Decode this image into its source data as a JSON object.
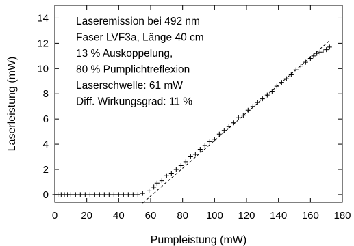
{
  "chart_data": {
    "type": "scatter",
    "xlabel": "Pumpleistung (mW)",
    "ylabel": "Laserleistung (mW)",
    "xlim": [
      0,
      180
    ],
    "ylim": [
      -0.6,
      15
    ],
    "x_ticks": [
      0,
      20,
      40,
      60,
      80,
      100,
      120,
      140,
      160,
      180
    ],
    "y_ticks": [
      0,
      2,
      4,
      6,
      8,
      10,
      12,
      14
    ],
    "annotation_lines": [
      "Laseremission bei 492 nm",
      "Faser LVF3a, Länge 40 cm",
      "13 % Auskoppelung,",
      "80 % Pumplichtreflexion",
      "Laserschwelle: 61 mW",
      "Diff. Wirkungsgrad: 11 %"
    ],
    "series": [
      {
        "marker": "plus",
        "x": [
          0,
          2,
          4,
          6,
          8,
          10,
          13,
          16,
          19,
          22,
          25,
          28,
          31,
          34,
          37,
          40,
          43,
          46,
          49,
          52,
          55,
          59,
          62,
          64,
          67,
          70,
          73,
          76,
          79,
          82,
          85,
          88,
          91,
          94,
          97,
          100,
          103,
          106,
          109,
          112,
          115,
          118,
          121,
          124,
          127,
          130,
          133,
          136,
          139,
          142,
          145,
          148,
          151,
          154,
          157,
          160,
          162,
          164,
          166,
          168,
          170,
          172
        ],
        "y": [
          0,
          0,
          0,
          0,
          0,
          0,
          0,
          0,
          0,
          0,
          0,
          0,
          0,
          0,
          0,
          0,
          0,
          0,
          0,
          0,
          0.1,
          0.3,
          0.6,
          0.9,
          1.1,
          1.5,
          1.7,
          2.0,
          2.3,
          2.6,
          3.0,
          3.2,
          3.6,
          3.9,
          4.2,
          4.4,
          4.8,
          5.1,
          5.4,
          5.7,
          6.1,
          6.3,
          6.7,
          7.0,
          7.3,
          7.6,
          7.9,
          8.2,
          8.6,
          8.9,
          9.2,
          9.5,
          9.9,
          10.2,
          10.5,
          10.8,
          11.0,
          11.2,
          11.3,
          11.4,
          11.5,
          11.7
        ]
      }
    ],
    "fit_line": {
      "style": "dashed",
      "slope": 0.11,
      "threshold_x": 61,
      "x_range": [
        55,
        172
      ]
    }
  }
}
